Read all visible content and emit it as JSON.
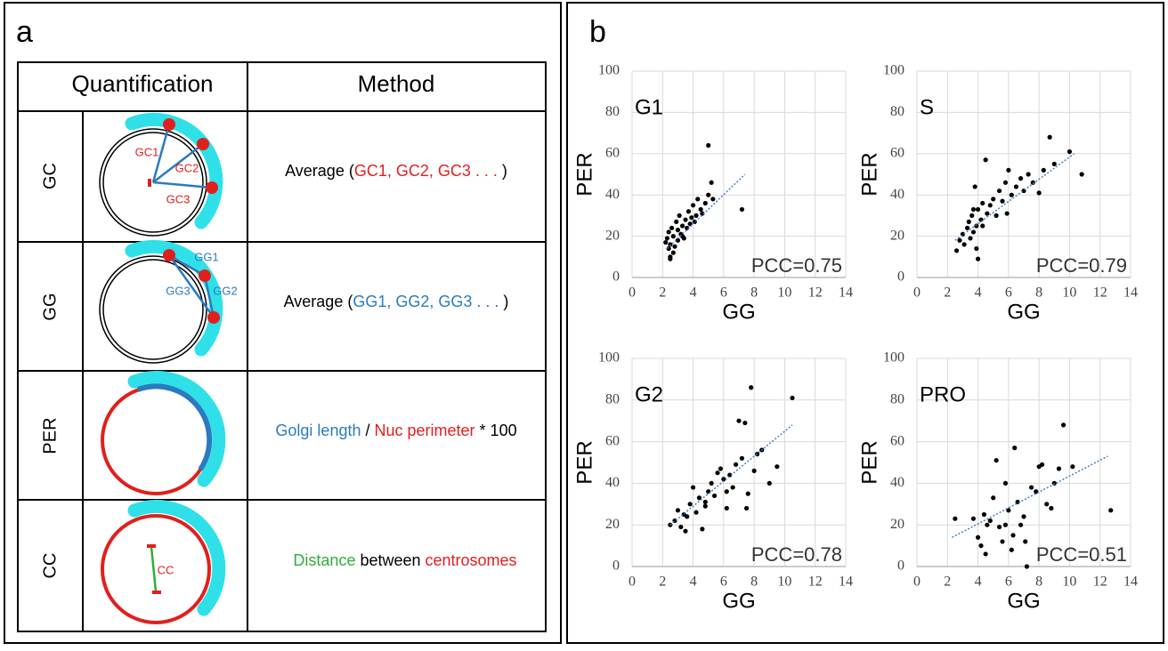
{
  "panel_a": {
    "label": "a",
    "header": [
      "Quantification",
      "Method"
    ],
    "rows": [
      {
        "name": "GC",
        "diagram_labels": [
          "GC1",
          "GC2",
          "GC3"
        ],
        "method": [
          {
            "text": "Average (",
            "color": "#000000"
          },
          {
            "text": "GC1, GC2, GC3 . . .",
            "color": "#e0201c"
          },
          {
            "text": " )",
            "color": "#000000"
          }
        ]
      },
      {
        "name": "GG",
        "diagram_labels": [
          "GG1",
          "GG2",
          "GG3"
        ],
        "method": [
          {
            "text": "Average (",
            "color": "#000000"
          },
          {
            "text": "GG1, GG2, GG3 . . .",
            "color": "#2b7bbf"
          },
          {
            "text": " )",
            "color": "#000000"
          }
        ]
      },
      {
        "name": "PER",
        "method": [
          {
            "text": "Golgi length",
            "color": "#2b7bbf"
          },
          {
            "text": " / ",
            "color": "#000000"
          },
          {
            "text": "Nuc perimeter",
            "color": "#e0201c"
          },
          {
            "text": " * 100",
            "color": "#000000"
          }
        ]
      },
      {
        "name": "CC",
        "diagram_labels": [
          "CC"
        ],
        "method": [
          {
            "text": "Distance",
            "color": "#2fae3a"
          },
          {
            "text": " between ",
            "color": "#000000"
          },
          {
            "text": "centrosomes",
            "color": "#e0201c"
          }
        ]
      }
    ]
  },
  "panel_b": {
    "label": "b"
  },
  "chart_data": [
    {
      "type": "scatter",
      "title": "G1",
      "x_label": "GG",
      "y_label": "PER",
      "annotation": "PCC=0.75",
      "xlim": [
        0,
        14
      ],
      "xticks": [
        0,
        2,
        4,
        6,
        8,
        10,
        12,
        14
      ],
      "ylim": [
        0,
        100
      ],
      "yticks": [
        0,
        20,
        40,
        60,
        80,
        100
      ],
      "grid": true,
      "color": "#000000",
      "x": [
        2.2,
        2.3,
        2.4,
        2.4,
        2.5,
        2.5,
        2.6,
        2.7,
        2.7,
        2.8,
        2.9,
        3.0,
        3.0,
        3.1,
        3.2,
        3.3,
        3.4,
        3.5,
        3.6,
        3.7,
        3.8,
        3.9,
        4.0,
        4.1,
        4.2,
        4.3,
        4.5,
        4.6,
        4.8,
        5.0,
        5.0,
        5.2,
        5.3,
        7.2,
        2.5,
        3.3
      ],
      "y": [
        17,
        19,
        14,
        22,
        10,
        16,
        24,
        12,
        20,
        15,
        27,
        18,
        23,
        30,
        21,
        25,
        19,
        28,
        24,
        32,
        26,
        29,
        35,
        27,
        30,
        38,
        33,
        31,
        36,
        40,
        64,
        46,
        38,
        33,
        9,
        20
      ],
      "trendline": {
        "color": "#4a7ebb",
        "x": [
          2.3,
          7.4
        ],
        "y": [
          14,
          50
        ]
      }
    },
    {
      "type": "scatter",
      "title": "S",
      "x_label": "GG",
      "y_label": "PER",
      "annotation": "PCC=0.79",
      "xlim": [
        0,
        14
      ],
      "xticks": [
        0,
        2,
        4,
        6,
        8,
        10,
        12,
        14
      ],
      "ylim": [
        0,
        100
      ],
      "yticks": [
        0,
        20,
        40,
        60,
        80,
        100
      ],
      "grid": true,
      "color": "#000000",
      "x": [
        2.6,
        2.8,
        3.0,
        3.1,
        3.3,
        3.4,
        3.5,
        3.6,
        3.7,
        3.8,
        3.9,
        4.0,
        4.0,
        4.2,
        4.3,
        4.5,
        4.6,
        4.8,
        5.0,
        5.2,
        5.4,
        5.6,
        5.8,
        6.0,
        6.2,
        6.5,
        6.8,
        7.0,
        7.3,
        7.6,
        8.0,
        8.3,
        8.7,
        9.0,
        10.0,
        10.8,
        4.3,
        3.7,
        3.9,
        5.9
      ],
      "y": [
        13,
        18,
        21,
        16,
        24,
        27,
        19,
        30,
        22,
        44,
        25,
        9,
        33,
        28,
        36,
        57,
        31,
        35,
        38,
        30,
        42,
        37,
        46,
        52,
        40,
        44,
        48,
        42,
        50,
        46,
        41,
        52,
        68,
        55,
        61,
        50,
        25,
        33,
        14,
        31
      ],
      "trendline": {
        "color": "#4a7ebb",
        "x": [
          2.5,
          10.3
        ],
        "y": [
          18,
          60
        ]
      }
    },
    {
      "type": "scatter",
      "title": "G2",
      "x_label": "GG",
      "y_label": "PER",
      "annotation": "PCC=0.78",
      "xlim": [
        0,
        14
      ],
      "xticks": [
        0,
        2,
        4,
        6,
        8,
        10,
        12,
        14
      ],
      "ylim": [
        0,
        100
      ],
      "yticks": [
        0,
        20,
        40,
        60,
        80,
        100
      ],
      "grid": true,
      "color": "#000000",
      "x": [
        2.5,
        2.8,
        3.0,
        3.2,
        3.4,
        3.5,
        3.8,
        4.0,
        4.2,
        4.4,
        4.6,
        4.8,
        5.0,
        5.2,
        5.4,
        5.6,
        5.8,
        6.0,
        6.2,
        6.4,
        6.6,
        6.8,
        7.0,
        7.2,
        7.4,
        7.6,
        7.8,
        8.0,
        8.2,
        8.5,
        9.0,
        9.5,
        10.5,
        6.2,
        7.5,
        4.8,
        3.6
      ],
      "y": [
        20,
        22,
        27,
        19,
        25,
        17,
        30,
        38,
        26,
        33,
        18,
        29,
        36,
        40,
        34,
        45,
        47,
        42,
        28,
        44,
        38,
        49,
        70,
        52,
        69,
        35,
        86,
        46,
        54,
        56,
        40,
        48,
        81,
        36,
        28,
        31,
        24
      ],
      "trendline": {
        "color": "#4a7ebb",
        "x": [
          2.5,
          10.5
        ],
        "y": [
          20,
          68
        ]
      }
    },
    {
      "type": "scatter",
      "title": "PRO",
      "x_label": "GG",
      "y_label": "PER",
      "annotation": "PCC=0.51",
      "xlim": [
        0,
        14
      ],
      "xticks": [
        0,
        2,
        4,
        6,
        8,
        10,
        12,
        14
      ],
      "ylim": [
        0,
        100
      ],
      "yticks": [
        0,
        20,
        40,
        60,
        80,
        100
      ],
      "grid": true,
      "color": "#000000",
      "x": [
        2.5,
        3.7,
        4.0,
        4.2,
        4.4,
        4.5,
        4.8,
        5.0,
        5.2,
        5.4,
        5.6,
        5.8,
        6.0,
        6.2,
        6.4,
        6.6,
        6.8,
        7.0,
        7.2,
        7.5,
        7.8,
        8.0,
        8.2,
        8.5,
        8.8,
        9.0,
        9.3,
        9.6,
        10.2,
        12.7,
        5.8,
        6.3,
        7.1,
        4.6
      ],
      "y": [
        23,
        23,
        14,
        10,
        25,
        6,
        22,
        33,
        51,
        19,
        12,
        40,
        27,
        8,
        57,
        31,
        20,
        24,
        0,
        38,
        36,
        48,
        49,
        30,
        28,
        40,
        47,
        68,
        48,
        27,
        20,
        15,
        12,
        20
      ],
      "trendline": {
        "color": "#4a7ebb",
        "x": [
          2.3,
          12.5
        ],
        "y": [
          14,
          53
        ]
      }
    }
  ]
}
